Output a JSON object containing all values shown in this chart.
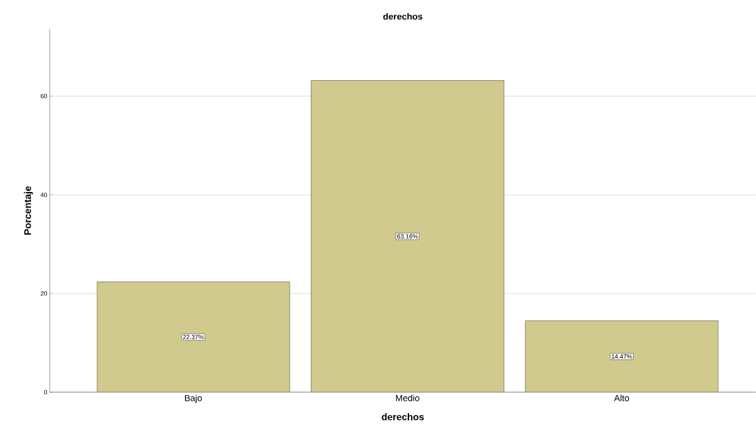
{
  "chart_data": {
    "type": "bar",
    "title": "derechos",
    "xlabel": "derechos",
    "ylabel": "Porcentaje",
    "categories": [
      "Bajo",
      "Medio",
      "Alto"
    ],
    "values": [
      22.37,
      63.16,
      14.47
    ],
    "value_labels": [
      "22.37%",
      "63.16%",
      "14.47%"
    ],
    "color": "#d0ca8e",
    "ylim": [
      0,
      73.6
    ],
    "yticks": [
      0,
      20,
      40,
      60
    ],
    "grid": "y"
  }
}
